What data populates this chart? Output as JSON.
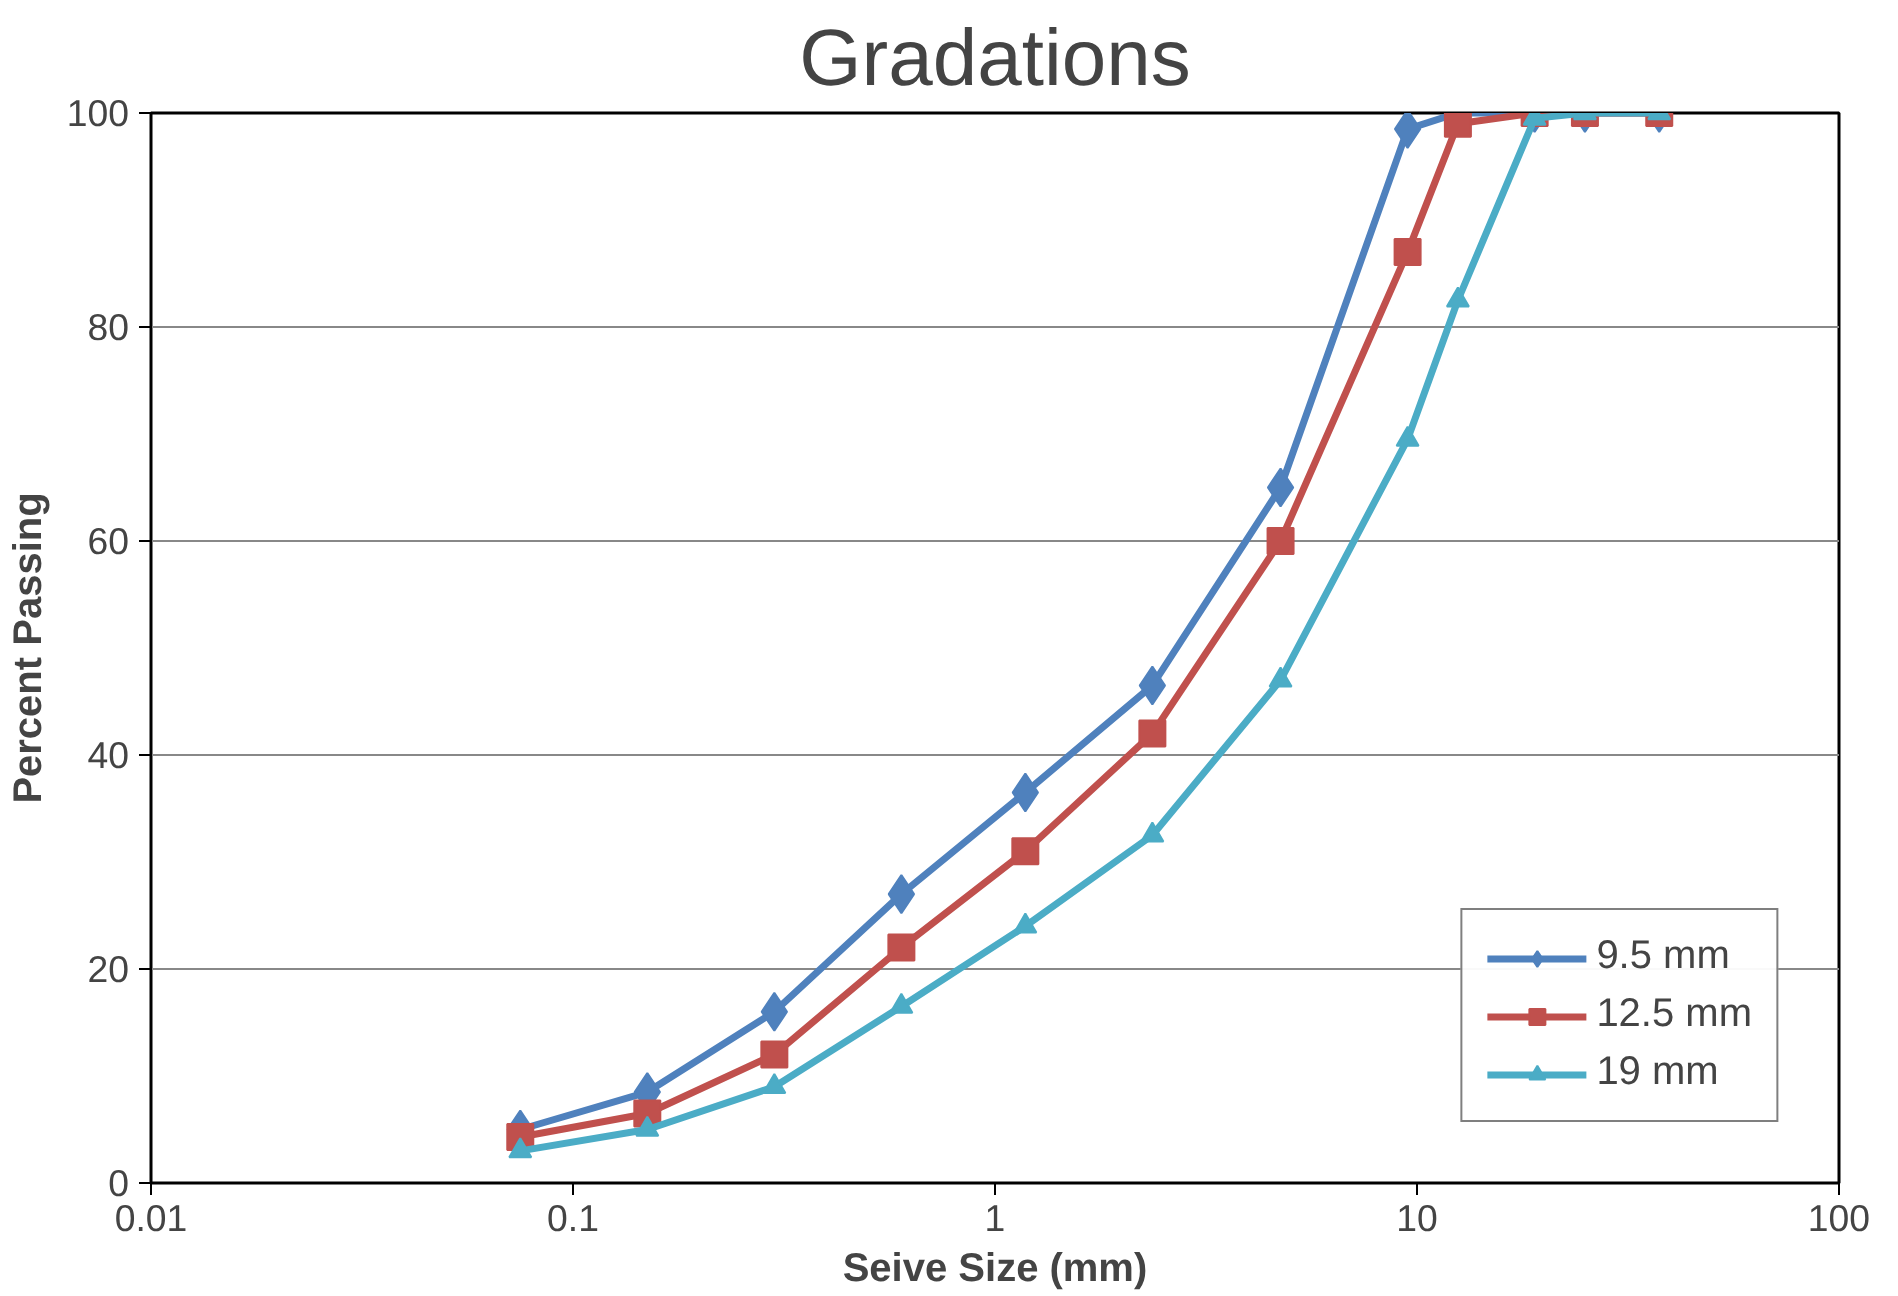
{
  "chart_data": {
    "type": "line",
    "title": "Gradations",
    "xlabel": "Seive Size (mm)",
    "ylabel": "Percent Passing",
    "x": [
      0.075,
      0.15,
      0.3,
      0.6,
      1.18,
      2.36,
      4.75,
      9.5,
      12.5,
      19,
      25,
      37.5
    ],
    "series": [
      {
        "name": "9.5 mm",
        "color": "#4f81bd",
        "marker": "diamond",
        "values": [
          5,
          8.5,
          16,
          27,
          36.5,
          46.5,
          65,
          98.5,
          100,
          100,
          100,
          100
        ]
      },
      {
        "name": "12.5 mm",
        "color": "#c0504d",
        "marker": "square",
        "values": [
          4.3,
          6.5,
          12,
          22,
          31,
          42,
          60,
          87,
          99,
          100,
          100,
          100
        ]
      },
      {
        "name": "19 mm",
        "color": "#4bacc6",
        "marker": "triangle",
        "values": [
          3,
          5,
          9,
          16.5,
          24,
          32.5,
          47,
          69.5,
          82.5,
          99.5,
          100,
          100
        ]
      }
    ],
    "log": "x",
    "xlim": [
      0.01,
      100
    ],
    "xticks": [
      0.01,
      0.1,
      1,
      10,
      100
    ],
    "ylim": [
      0,
      100
    ],
    "yticks": [
      0,
      20,
      40,
      60,
      80,
      100
    ],
    "grid": "y",
    "legend": "bottom right",
    "line_style": "solid"
  }
}
